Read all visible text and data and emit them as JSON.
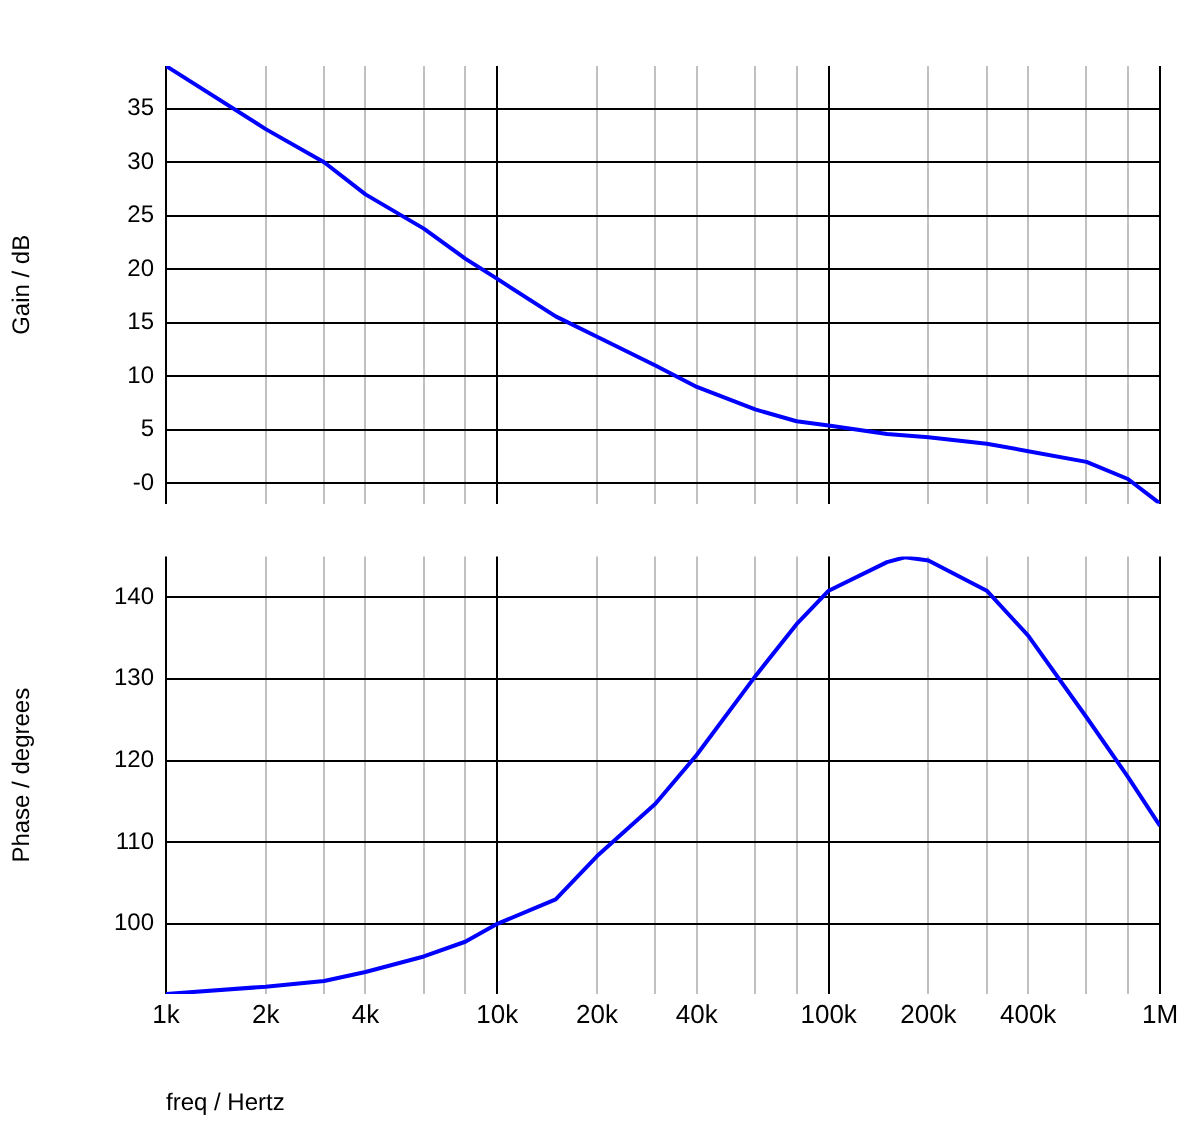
{
  "chart_data": [
    {
      "type": "line",
      "ylabel": "Gain / dB",
      "log": "x",
      "grid": true,
      "marker": "none",
      "tick_labels": "y",
      "xlim": [
        1000,
        1000000
      ],
      "ylim": [
        -1.9,
        39
      ],
      "xticks": [
        {
          "value": 1000,
          "label": null
        },
        {
          "value": 2000,
          "label": null
        },
        {
          "value": 3000,
          "label": null
        },
        {
          "value": 4000,
          "label": null
        },
        {
          "value": 6000,
          "label": null
        },
        {
          "value": 8000,
          "label": null
        },
        {
          "value": 10000,
          "label": null
        },
        {
          "value": 20000,
          "label": null
        },
        {
          "value": 30000,
          "label": null
        },
        {
          "value": 40000,
          "label": null
        },
        {
          "value": 60000,
          "label": null
        },
        {
          "value": 80000,
          "label": null
        },
        {
          "value": 100000,
          "label": null
        },
        {
          "value": 200000,
          "label": null
        },
        {
          "value": 300000,
          "label": null
        },
        {
          "value": 400000,
          "label": null
        },
        {
          "value": 600000,
          "label": null
        },
        {
          "value": 800000,
          "label": null
        },
        {
          "value": 1000000,
          "label": null
        }
      ],
      "yticks": [
        {
          "value": 0,
          "label": "-0"
        },
        5,
        10,
        15,
        20,
        25,
        30,
        35
      ],
      "x": [
        1000,
        2000,
        3000,
        4000,
        6000,
        8000,
        10000,
        15000,
        20000,
        30000,
        40000,
        60000,
        80000,
        100000,
        150000,
        200000,
        300000,
        400000,
        600000,
        800000,
        1000000
      ],
      "series": [
        {
          "color": "#0000ff",
          "values": [
            39.0,
            33.1,
            30.0,
            27.0,
            23.8,
            21.0,
            19.1,
            15.6,
            13.7,
            11.0,
            9.0,
            6.9,
            5.8,
            5.4,
            4.6,
            4.3,
            3.7,
            3.0,
            2.0,
            0.4,
            -1.9
          ]
        }
      ]
    },
    {
      "type": "line",
      "ylabel": "Phase / degrees",
      "xlabel": "freq / Hertz",
      "log": "x",
      "grid": true,
      "marker": "none",
      "xlim": [
        1000,
        1000000
      ],
      "ylim": [
        91.4,
        145
      ],
      "xticks": [
        {
          "value": 1000,
          "label": "1k"
        },
        {
          "value": 2000,
          "label": "2k"
        },
        {
          "value": 3000,
          "label": null
        },
        {
          "value": 4000,
          "label": "4k"
        },
        {
          "value": 6000,
          "label": null
        },
        {
          "value": 8000,
          "label": null
        },
        {
          "value": 10000,
          "label": "10k"
        },
        {
          "value": 20000,
          "label": "20k"
        },
        {
          "value": 30000,
          "label": null
        },
        {
          "value": 40000,
          "label": "40k"
        },
        {
          "value": 60000,
          "label": null
        },
        {
          "value": 80000,
          "label": null
        },
        {
          "value": 100000,
          "label": "100k"
        },
        {
          "value": 200000,
          "label": "200k"
        },
        {
          "value": 300000,
          "label": null
        },
        {
          "value": 400000,
          "label": "400k"
        },
        {
          "value": 600000,
          "label": null
        },
        {
          "value": 800000,
          "label": null
        },
        {
          "value": 1000000,
          "label": "1M"
        }
      ],
      "yticks": [
        100,
        110,
        120,
        130,
        140
      ],
      "x": [
        1000,
        2000,
        3000,
        4000,
        6000,
        8000,
        10000,
        15000,
        20000,
        30000,
        40000,
        60000,
        80000,
        100000,
        150000,
        170000,
        200000,
        300000,
        400000,
        600000,
        800000,
        1000000
      ],
      "series": [
        {
          "color": "#0000ff",
          "values": [
            91.4,
            92.3,
            93.0,
            94.1,
            96.0,
            97.8,
            100,
            103.0,
            108.3,
            114.7,
            120.7,
            130.3,
            136.7,
            140.8,
            144.3,
            144.9,
            144.5,
            140.8,
            135.3,
            125.3,
            118.0,
            112.0
          ]
        }
      ]
    }
  ]
}
